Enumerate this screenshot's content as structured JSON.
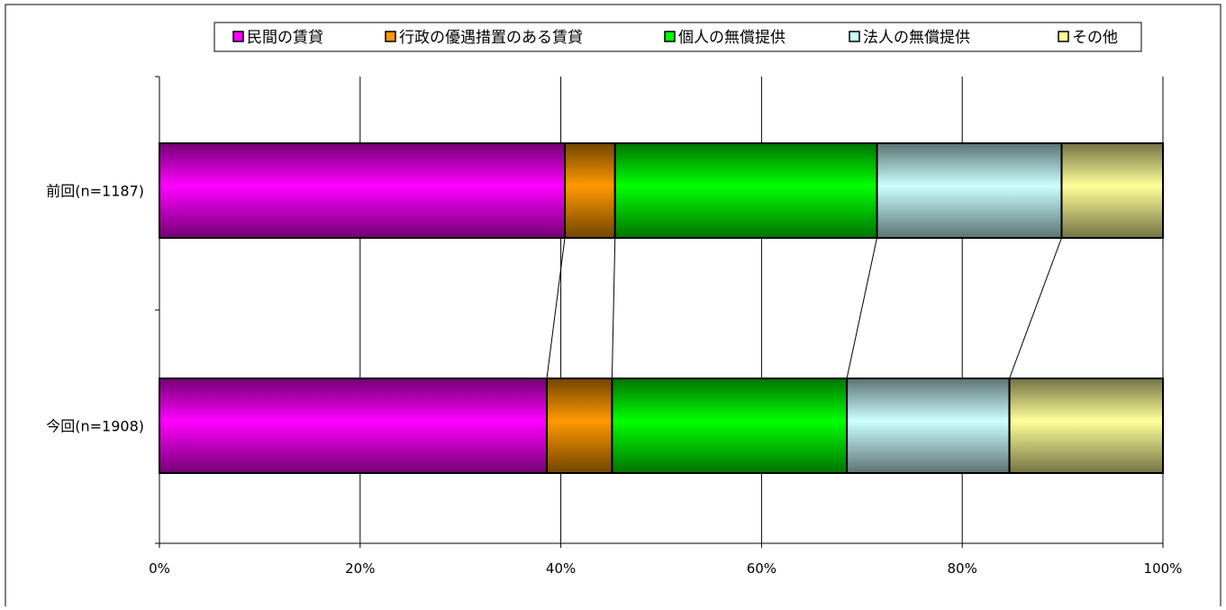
{
  "chart_data": {
    "type": "bar",
    "orientation": "horizontal",
    "stacked": "percent",
    "categories": [
      "前回(n=1187)",
      "今回(n=1908)"
    ],
    "series": [
      {
        "name": "民間の賃貸",
        "color": "#ff00ff",
        "values": [
          40.4,
          38.6
        ]
      },
      {
        "name": "行政の優遇措置のある賃貸",
        "color": "#ff9900",
        "values": [
          5.0,
          6.5
        ]
      },
      {
        "name": "個人の無償提供",
        "color": "#00ff00",
        "values": [
          26.1,
          23.4
        ]
      },
      {
        "name": "法人の無償提供",
        "color": "#ccffff",
        "values": [
          18.4,
          16.2
        ]
      },
      {
        "name": "その他",
        "color": "#ffff99",
        "values": [
          10.1,
          15.3
        ]
      }
    ],
    "xlim": [
      0,
      100
    ],
    "xticks": [
      "0%",
      "20%",
      "40%",
      "60%",
      "80%",
      "100%"
    ],
    "grid": true,
    "series_lines": true,
    "legend_position": "top"
  }
}
